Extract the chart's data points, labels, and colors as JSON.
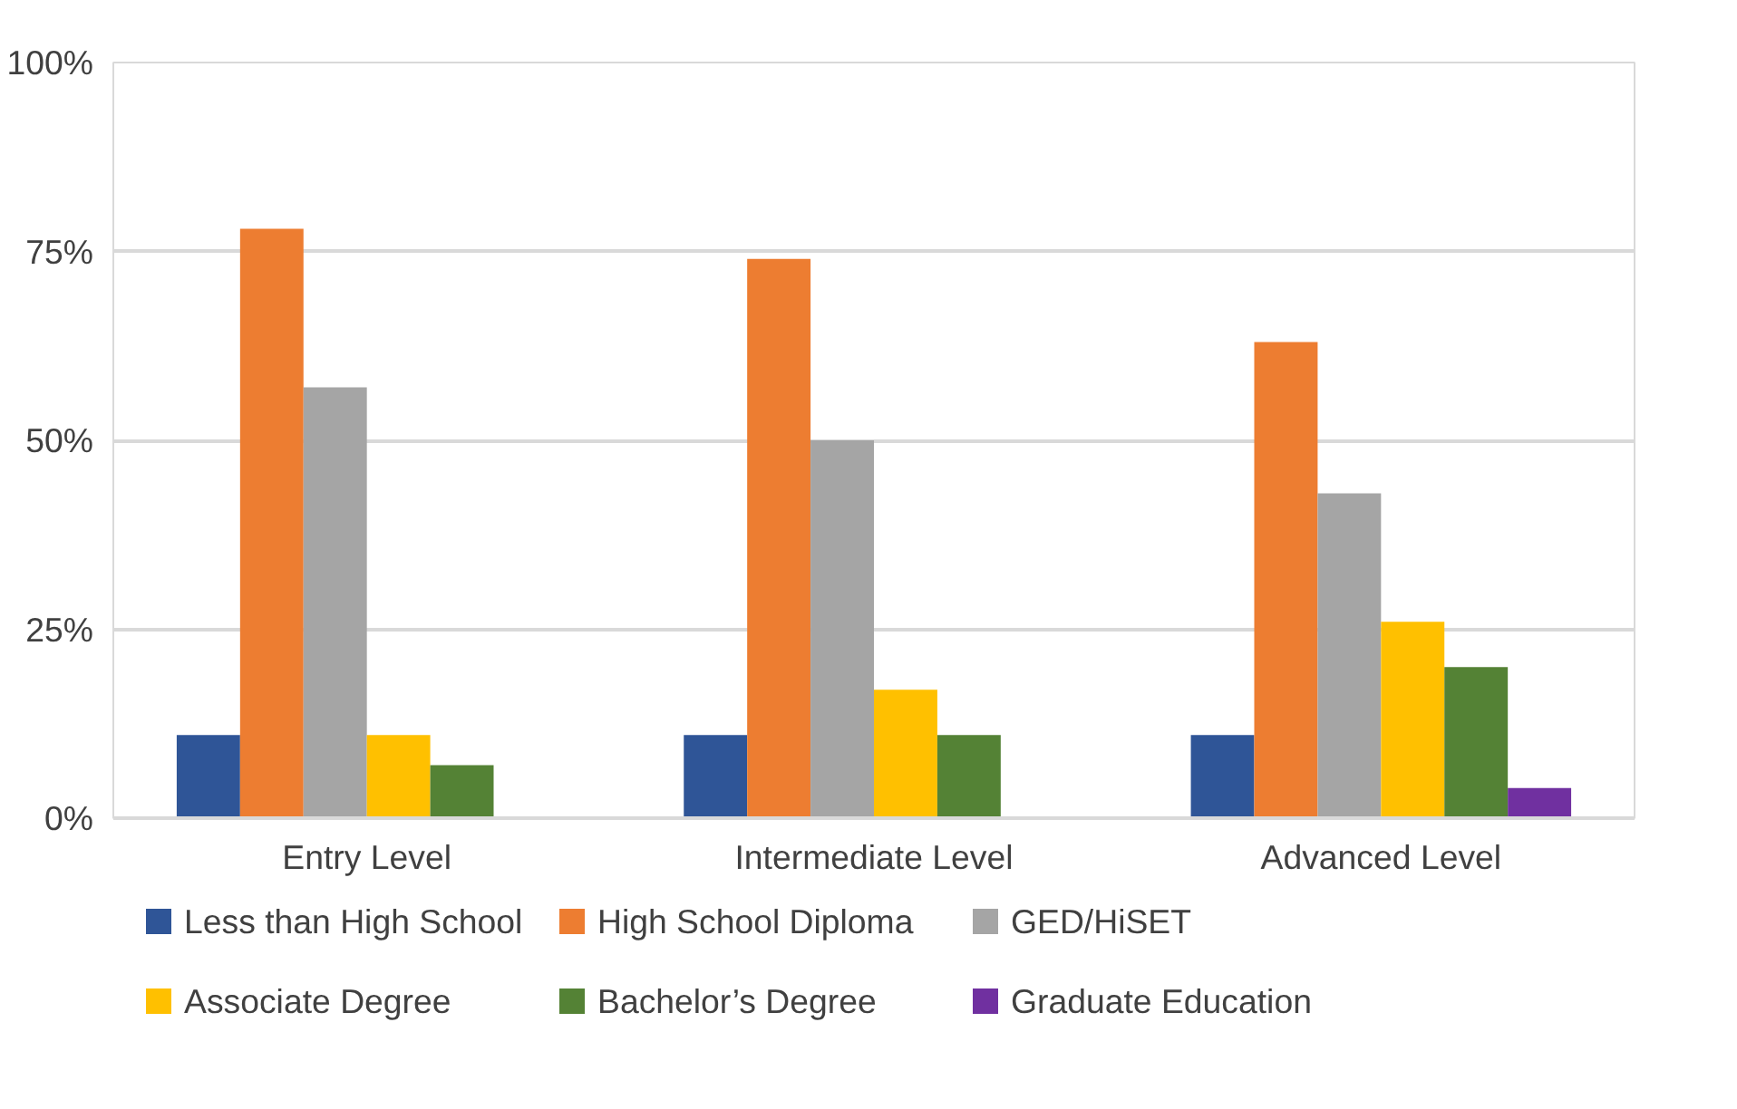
{
  "chart_data": {
    "type": "bar",
    "categories": [
      "Entry Level",
      "Intermediate Level",
      "Advanced Level"
    ],
    "series": [
      {
        "name": "Less than High School",
        "color": "#2f5597",
        "values": [
          11,
          11,
          11
        ]
      },
      {
        "name": "High School Diploma",
        "color": "#ed7d31",
        "values": [
          78,
          74,
          63
        ]
      },
      {
        "name": "GED/HiSET",
        "color": "#a5a5a5",
        "values": [
          57,
          50,
          43
        ]
      },
      {
        "name": "Associate Degree",
        "color": "#ffc000",
        "values": [
          11,
          17,
          26
        ]
      },
      {
        "name": "Bachelor’s Degree",
        "color": "#548235",
        "values": [
          7,
          11,
          20
        ]
      },
      {
        "name": "Graduate Education",
        "color": "#7030a0",
        "values": [
          null,
          null,
          4
        ]
      }
    ],
    "ylim": [
      0,
      100
    ],
    "yticks": [
      {
        "value": 0,
        "label": "0%"
      },
      {
        "value": 25,
        "label": "25%"
      },
      {
        "value": 50,
        "label": "50%"
      },
      {
        "value": 75,
        "label": "75%"
      },
      {
        "value": 100,
        "label": "100%"
      }
    ],
    "grid": "y",
    "legend": "bottom"
  }
}
